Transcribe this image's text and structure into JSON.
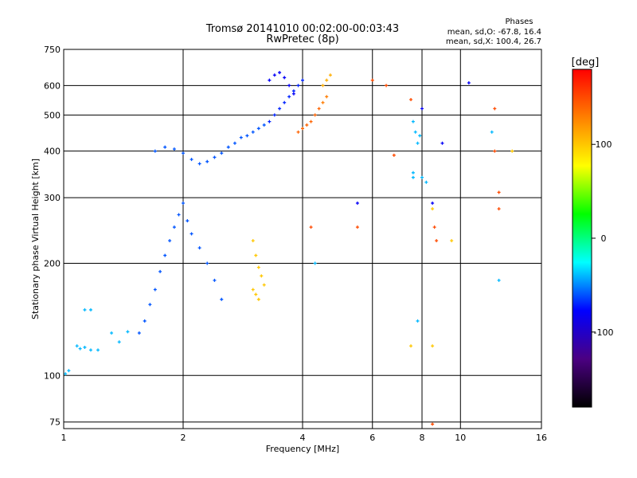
{
  "chart_data": {
    "type": "scatter",
    "title": "Tromsø 20141010 00:02:00-00:03:43",
    "subtitle": "RwPretec (8p)",
    "xlabel": "Frequency [MHz]",
    "ylabel": "Stationary phase Virtual Height [km]",
    "x_scale": "log",
    "y_scale": "log",
    "xlim": [
      1,
      16
    ],
    "ylim": [
      72,
      750
    ],
    "x_ticks": [
      1,
      2,
      4,
      6,
      8,
      10,
      16
    ],
    "y_ticks": [
      75,
      100,
      200,
      300,
      400,
      500,
      600,
      750
    ],
    "grid": true,
    "phases_box": {
      "title": "Phases",
      "line_o": "mean, sd,O: -67.8, 16.4",
      "line_x": "mean, sd,X: 100.4, 26.7"
    },
    "colorbar": {
      "label": "[deg]",
      "range": [
        -180,
        180
      ],
      "ticks": [
        100,
        0,
        -100
      ],
      "colors": [
        "#ff0000",
        "#ff8000",
        "#ffff00",
        "#00ff00",
        "#00ffff",
        "#0000ff",
        "#4b0082",
        "#000000"
      ]
    },
    "series": [
      {
        "description": "O-mode traces (cyan/blue cluster)",
        "points": [
          [
            1.01,
            101,
            -40
          ],
          [
            1.03,
            103,
            -40
          ],
          [
            1.08,
            120,
            -40
          ],
          [
            1.1,
            118,
            -40
          ],
          [
            1.13,
            119,
            -40
          ],
          [
            1.17,
            117,
            -40
          ],
          [
            1.22,
            117,
            -40
          ],
          [
            1.13,
            150,
            -40
          ],
          [
            1.17,
            150,
            -40
          ],
          [
            1.32,
            130,
            -40
          ],
          [
            1.38,
            123,
            -40
          ],
          [
            1.45,
            131,
            -40
          ],
          [
            1.55,
            130,
            -60
          ],
          [
            1.6,
            140,
            -60
          ],
          [
            1.65,
            155,
            -60
          ],
          [
            1.7,
            170,
            -60
          ],
          [
            1.75,
            190,
            -60
          ],
          [
            1.8,
            210,
            -60
          ],
          [
            1.85,
            230,
            -60
          ],
          [
            1.9,
            250,
            -60
          ],
          [
            1.95,
            270,
            -60
          ],
          [
            2.0,
            290,
            -60
          ],
          [
            2.05,
            260,
            -60
          ],
          [
            2.1,
            240,
            -60
          ],
          [
            2.2,
            220,
            -60
          ],
          [
            2.3,
            200,
            -60
          ],
          [
            2.4,
            180,
            -60
          ],
          [
            2.5,
            160,
            -60
          ],
          [
            1.7,
            400,
            -60
          ],
          [
            1.8,
            410,
            -60
          ],
          [
            1.9,
            405,
            -60
          ],
          [
            2.0,
            395,
            -60
          ],
          [
            2.1,
            380,
            -60
          ],
          [
            2.2,
            370,
            -60
          ],
          [
            2.3,
            375,
            -60
          ],
          [
            2.4,
            385,
            -60
          ],
          [
            2.5,
            395,
            -60
          ],
          [
            2.6,
            410,
            -60
          ],
          [
            2.7,
            420,
            -60
          ],
          [
            2.8,
            435,
            -60
          ],
          [
            2.9,
            440,
            -60
          ],
          [
            3.0,
            450,
            -60
          ],
          [
            3.1,
            460,
            -60
          ],
          [
            3.2,
            470,
            -60
          ],
          [
            3.3,
            480,
            -70
          ],
          [
            3.4,
            500,
            -70
          ],
          [
            3.5,
            520,
            -70
          ],
          [
            3.6,
            540,
            -70
          ],
          [
            3.7,
            560,
            -70
          ],
          [
            3.8,
            580,
            -70
          ],
          [
            3.9,
            600,
            -70
          ],
          [
            4.0,
            620,
            -70
          ],
          [
            3.3,
            620,
            -80
          ],
          [
            3.4,
            640,
            -80
          ],
          [
            3.5,
            650,
            -80
          ],
          [
            3.6,
            630,
            -80
          ],
          [
            3.7,
            600,
            -80
          ],
          [
            3.8,
            570,
            -80
          ]
        ]
      },
      {
        "description": "X-mode traces (yellow/orange/red cluster)",
        "points": [
          [
            3.0,
            230,
            100
          ],
          [
            3.05,
            210,
            100
          ],
          [
            3.1,
            195,
            100
          ],
          [
            3.15,
            185,
            100
          ],
          [
            3.2,
            175,
            100
          ],
          [
            3.0,
            170,
            100
          ],
          [
            3.05,
            165,
            100
          ],
          [
            3.1,
            160,
            100
          ],
          [
            3.9,
            450,
            140
          ],
          [
            4.0,
            460,
            140
          ],
          [
            4.1,
            470,
            140
          ],
          [
            4.2,
            480,
            140
          ],
          [
            4.3,
            500,
            140
          ],
          [
            4.4,
            520,
            140
          ],
          [
            4.5,
            540,
            130
          ],
          [
            4.6,
            560,
            130
          ],
          [
            4.5,
            600,
            110
          ],
          [
            4.6,
            620,
            110
          ],
          [
            4.7,
            640,
            110
          ]
        ]
      },
      {
        "description": "Scattered echoes",
        "points": [
          [
            4.2,
            250,
            150
          ],
          [
            4.3,
            200,
            -40
          ],
          [
            5.5,
            250,
            150
          ],
          [
            5.5,
            290,
            -80
          ],
          [
            6.0,
            620,
            150
          ],
          [
            6.5,
            600,
            150
          ],
          [
            6.8,
            390,
            150
          ],
          [
            7.5,
            550,
            150
          ],
          [
            7.6,
            480,
            -40
          ],
          [
            7.7,
            450,
            -40
          ],
          [
            7.8,
            420,
            -40
          ],
          [
            7.9,
            440,
            -40
          ],
          [
            7.6,
            350,
            -40
          ],
          [
            7.6,
            340,
            -40
          ],
          [
            8.0,
            340,
            -40
          ],
          [
            8.2,
            330,
            -40
          ],
          [
            8.5,
            280,
            100
          ],
          [
            8.5,
            290,
            -80
          ],
          [
            8.6,
            250,
            150
          ],
          [
            8.7,
            230,
            150
          ],
          [
            9.5,
            230,
            100
          ],
          [
            10.5,
            610,
            -80
          ],
          [
            12.2,
            520,
            150
          ],
          [
            12.0,
            450,
            -40
          ],
          [
            12.2,
            400,
            150
          ],
          [
            12.5,
            310,
            150
          ],
          [
            12.5,
            280,
            150
          ],
          [
            12.5,
            180,
            -40
          ],
          [
            13.5,
            400,
            100
          ],
          [
            7.5,
            120,
            100
          ],
          [
            7.8,
            140,
            -40
          ],
          [
            8.5,
            120,
            100
          ],
          [
            8.5,
            74,
            150
          ],
          [
            9.0,
            420,
            -80
          ],
          [
            8.0,
            520,
            -80
          ]
        ]
      }
    ]
  }
}
